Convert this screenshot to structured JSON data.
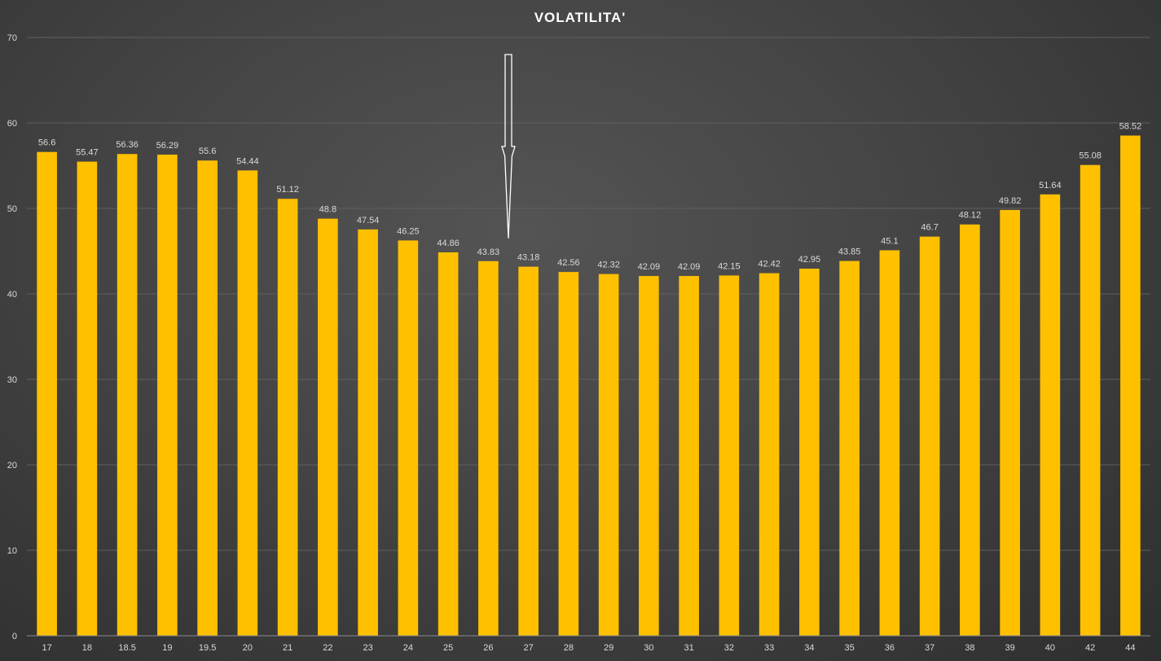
{
  "chart_data": {
    "type": "bar",
    "title": "VOLATILITA'",
    "xlabel": "",
    "ylabel": "",
    "categories": [
      "17",
      "18",
      "18.5",
      "19",
      "19.5",
      "20",
      "21",
      "22",
      "23",
      "24",
      "25",
      "26",
      "27",
      "28",
      "29",
      "30",
      "31",
      "32",
      "33",
      "34",
      "35",
      "36",
      "37",
      "38",
      "39",
      "40",
      "42",
      "44"
    ],
    "values": [
      56.6,
      55.47,
      56.36,
      56.29,
      55.6,
      54.44,
      51.12,
      48.8,
      47.54,
      46.25,
      44.86,
      43.83,
      43.18,
      42.56,
      42.32,
      42.09,
      42.09,
      42.15,
      42.42,
      42.95,
      43.85,
      45.1,
      46.7,
      48.12,
      49.82,
      51.64,
      55.08,
      58.52
    ],
    "data_labels": [
      "56.6",
      "55.47",
      "56.36",
      "56.29",
      "55.6",
      "54.44",
      "51.12",
      "48.8",
      "47.54",
      "46.25",
      "44.86",
      "43.83",
      "43.18",
      "42.56",
      "42.32",
      "42.09",
      "42.09",
      "42.15",
      "42.42",
      "42.95",
      "43.85",
      "45.1",
      "46.7",
      "48.12",
      "49.82",
      "51.64",
      "55.08",
      "58.52"
    ],
    "ylim": [
      0,
      70
    ],
    "yticks": [
      "0",
      "10",
      "20",
      "30",
      "40",
      "50",
      "60",
      "70"
    ],
    "grid": true,
    "legend": "none",
    "bar_color": "#FFC000",
    "annotation": {
      "type": "arrow",
      "pointing": "down",
      "between_categories": [
        "26",
        "27"
      ],
      "tip_value": 46.5,
      "top_value": 68
    }
  }
}
